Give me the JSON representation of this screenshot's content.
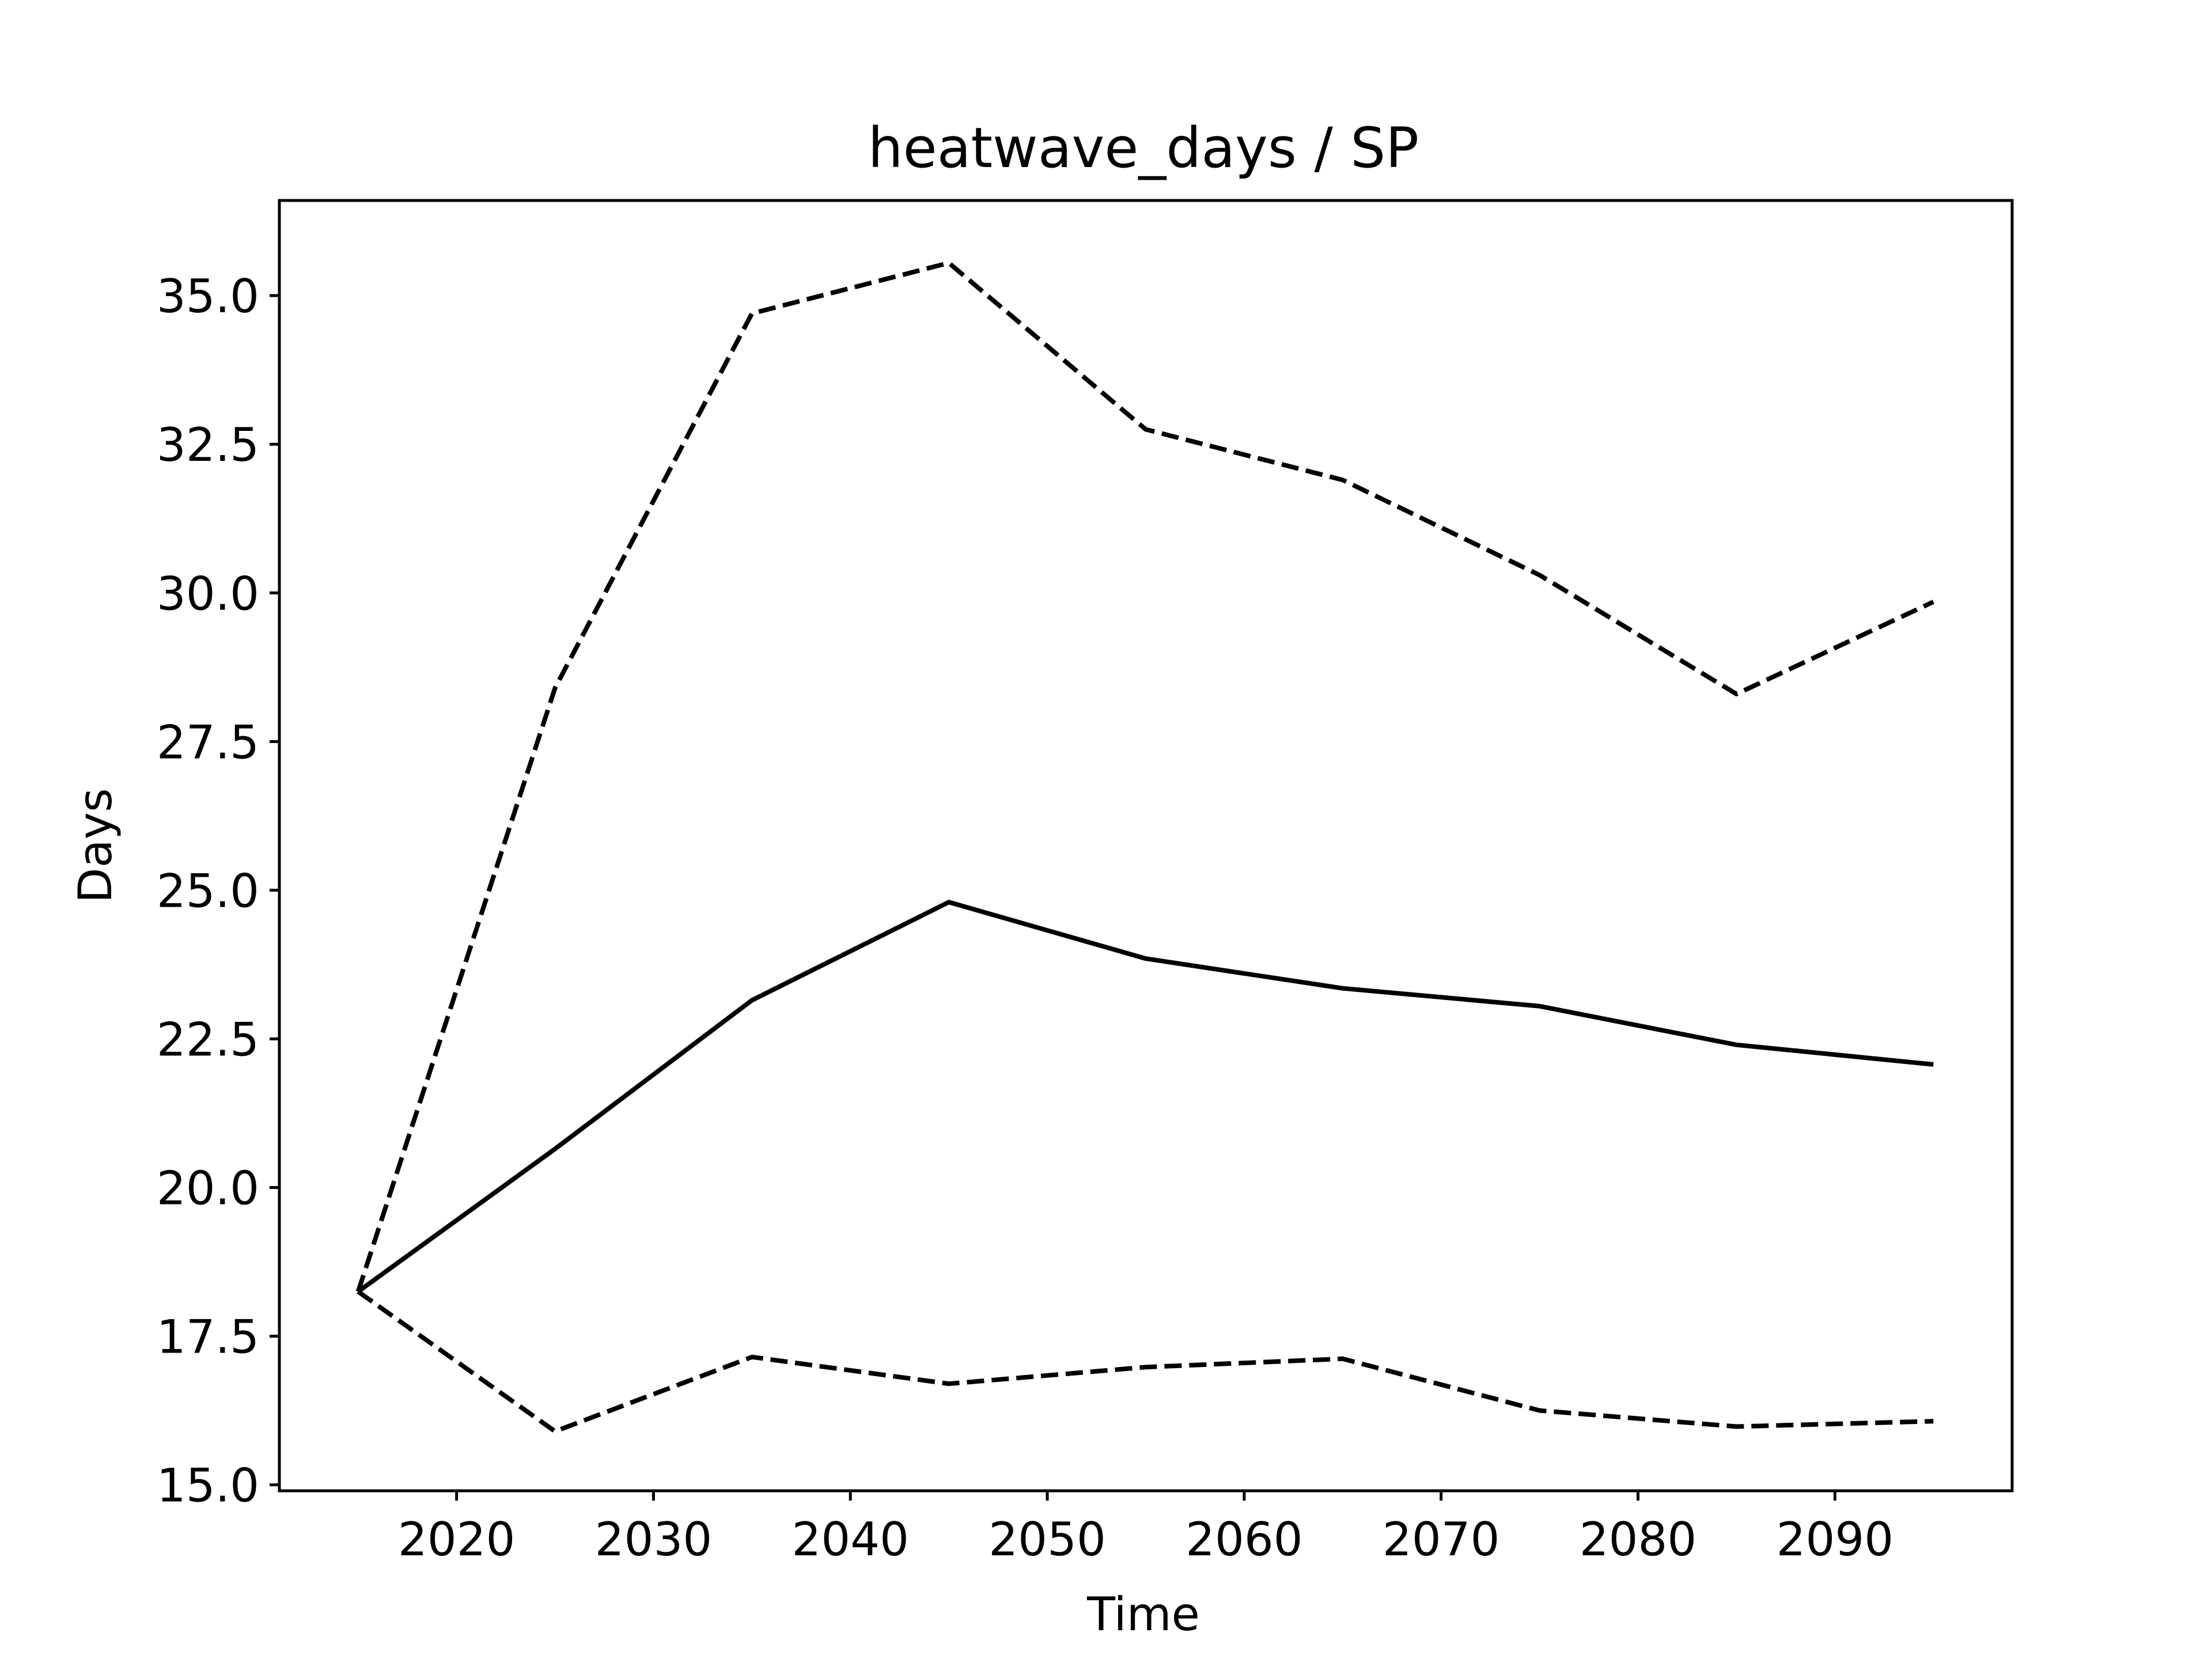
{
  "chart_data": {
    "type": "line",
    "title": "heatwave_days / SP",
    "xlabel": "Time",
    "ylabel": "Days",
    "xlim": [
      2011,
      2099
    ],
    "ylim": [
      14.9,
      36.6
    ],
    "xticks": [
      2020,
      2030,
      2040,
      2050,
      2060,
      2070,
      2080,
      2090
    ],
    "yticks": [
      15.0,
      17.5,
      20.0,
      22.5,
      25.0,
      27.5,
      30.0,
      32.5,
      35.0
    ],
    "ytick_labels": [
      "15.0",
      "17.5",
      "20.0",
      "22.5",
      "25.0",
      "27.5",
      "30.0",
      "32.5",
      "35.0"
    ],
    "grid": false,
    "legend": false,
    "x": [
      2015,
      2025,
      2035,
      2045,
      2055,
      2065,
      2075,
      2085,
      2095
    ],
    "series": [
      {
        "style": "solid",
        "color": "#000000",
        "values": [
          18.25,
          20.65,
          23.15,
          24.8,
          23.85,
          23.35,
          23.05,
          22.4,
          22.07
        ]
      },
      {
        "style": "dashed",
        "color": "#000000",
        "values": [
          18.25,
          28.4,
          34.7,
          35.55,
          32.75,
          31.9,
          30.3,
          28.3,
          29.85
        ]
      },
      {
        "style": "dashed",
        "color": "#000000",
        "values": [
          18.25,
          15.9,
          17.15,
          16.7,
          16.98,
          17.12,
          16.25,
          15.98,
          16.07
        ]
      }
    ]
  }
}
